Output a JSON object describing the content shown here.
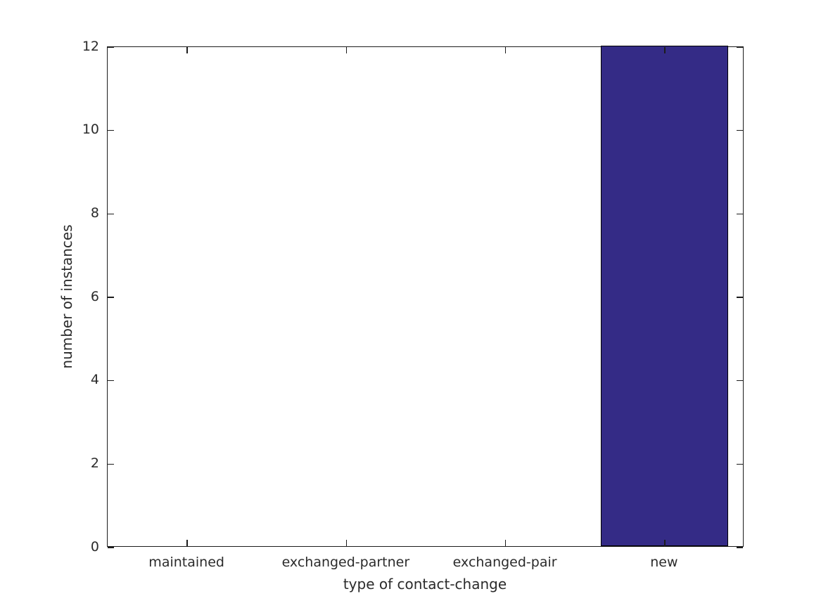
{
  "chart_data": {
    "type": "bar",
    "title": "",
    "categories": [
      "maintained",
      "exchanged-partner",
      "exchanged-pair",
      "new"
    ],
    "values": [
      0,
      0,
      0,
      12
    ],
    "xlabel": "type of contact-change",
    "ylabel": "number of instances",
    "ylim": [
      0,
      12
    ],
    "yticks": [
      0,
      2,
      4,
      6,
      8,
      10,
      12
    ],
    "bar_width_fraction": 0.8,
    "bar_color": "#342b86",
    "bar_edge_color": "#000000",
    "axis_color": "#1c1c1c",
    "text_color": "#2b2b2b",
    "background_color": "#ffffff",
    "grid": false,
    "legend": null,
    "tick_style": "inward-all-four-sides"
  }
}
